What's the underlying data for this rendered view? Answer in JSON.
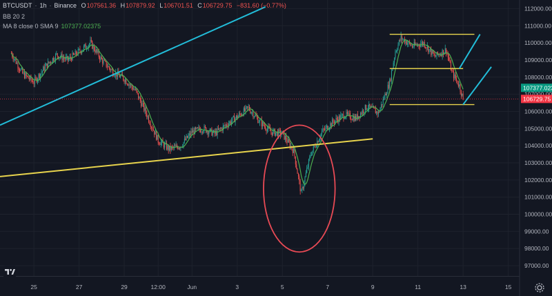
{
  "header": {
    "symbol": "BTCUSDT",
    "interval": "1h",
    "exchange": "Binance",
    "open_label": "O",
    "open": "107561.36",
    "high_label": "H",
    "high": "107879.92",
    "low_label": "L",
    "low": "106701.51",
    "close_label": "C",
    "close": "106729.75",
    "change": "−831.60 (−0.77%)",
    "bb_label": "BB 20 2",
    "ma_label": "MA 8 close 0 SMA 9",
    "ma_value": "107377.02375"
  },
  "colors": {
    "background": "#131722",
    "up": "#26a69a",
    "down": "#ef5350",
    "ma": "#4caf50",
    "trendline_cyan": "#22bcd8",
    "trendline_yellow": "#e8d44d",
    "circle": "#e84a55",
    "price_tag_current": "#f23645",
    "price_tag_ma": "#089981"
  },
  "price_tags": {
    "ma": "107377.023",
    "current": "106729.75"
  },
  "chart_data": {
    "type": "candlestick",
    "y_axis_labels": [
      "112000.00",
      "111000.00",
      "110000.00",
      "109000.00",
      "108000.00",
      "107000.00",
      "106000.00",
      "105000.00",
      "104000.00",
      "103000.00",
      "102000.00",
      "101000.00",
      "100000.00",
      "99000.00",
      "98000.00",
      "97000.00"
    ],
    "ylim": [
      96400,
      112500
    ],
    "x_axis_labels": [
      "25",
      "27",
      "29",
      "12:00",
      "Jun",
      "3",
      "5",
      "7",
      "9",
      "11",
      "13",
      "15"
    ],
    "approx_price_path": [
      {
        "t": "May 24 00:00",
        "p": 109400
      },
      {
        "t": "May 24 12:00",
        "p": 108200
      },
      {
        "t": "May 25 00:00",
        "p": 107700
      },
      {
        "t": "May 25 12:00",
        "p": 108600
      },
      {
        "t": "May 26 00:00",
        "p": 109300
      },
      {
        "t": "May 26 12:00",
        "p": 109000
      },
      {
        "t": "May 27 00:00",
        "p": 109500
      },
      {
        "t": "May 27 12:00",
        "p": 110000
      },
      {
        "t": "May 28 00:00",
        "p": 109000
      },
      {
        "t": "May 28 12:00",
        "p": 108300
      },
      {
        "t": "May 29 00:00",
        "p": 107900
      },
      {
        "t": "May 29 12:00",
        "p": 107200
      },
      {
        "t": "May 30 00:00",
        "p": 105800
      },
      {
        "t": "May 30 12:00",
        "p": 104300
      },
      {
        "t": "May 31 00:00",
        "p": 103800
      },
      {
        "t": "May 31 12:00",
        "p": 104000
      },
      {
        "t": "Jun 1 00:00",
        "p": 104800
      },
      {
        "t": "Jun 1 12:00",
        "p": 105000
      },
      {
        "t": "Jun 2 00:00",
        "p": 104700
      },
      {
        "t": "Jun 2 12:00",
        "p": 105200
      },
      {
        "t": "Jun 3 00:00",
        "p": 105700
      },
      {
        "t": "Jun 3 12:00",
        "p": 106200
      },
      {
        "t": "Jun 4 00:00",
        "p": 105400
      },
      {
        "t": "Jun 4 12:00",
        "p": 104800
      },
      {
        "t": "Jun 5 00:00",
        "p": 104700
      },
      {
        "t": "Jun 5 12:00",
        "p": 103700
      },
      {
        "t": "Jun 5 20:00",
        "p": 101200
      },
      {
        "t": "Jun 6 06:00",
        "p": 103500
      },
      {
        "t": "Jun 6 18:00",
        "p": 104800
      },
      {
        "t": "Jun 7 06:00",
        "p": 105400
      },
      {
        "t": "Jun 7 18:00",
        "p": 105800
      },
      {
        "t": "Jun 8 06:00",
        "p": 105600
      },
      {
        "t": "Jun 8 18:00",
        "p": 106300
      },
      {
        "t": "Jun 9 06:00",
        "p": 105900
      },
      {
        "t": "Jun 9 18:00",
        "p": 107700
      },
      {
        "t": "Jun 10 00:00",
        "p": 109500
      },
      {
        "t": "Jun 10 06:00",
        "p": 110300
      },
      {
        "t": "Jun 10 18:00",
        "p": 109800
      },
      {
        "t": "Jun 11 06:00",
        "p": 110000
      },
      {
        "t": "Jun 11 18:00",
        "p": 109200
      },
      {
        "t": "Jun 12 06:00",
        "p": 109600
      },
      {
        "t": "Jun 12 12:00",
        "p": 108300
      },
      {
        "t": "Jun 12 20:00",
        "p": 107500
      },
      {
        "t": "Jun 13 00:00",
        "p": 106730
      }
    ],
    "drawings": [
      {
        "kind": "trendline",
        "color": "cyan",
        "from": {
          "t": "May 23 12:00",
          "p": 105200
        },
        "to": {
          "t": "Jun 4 06:00",
          "p": 112100
        }
      },
      {
        "kind": "trendline",
        "color": "yellow",
        "from": {
          "t": "May 23 12:00",
          "p": 102200
        },
        "to": {
          "t": "Jun 9 00:00",
          "p": 104400
        }
      },
      {
        "kind": "hline",
        "color": "yellow",
        "from": {
          "t": "Jun 9 18:00",
          "p": 110500
        },
        "to": {
          "t": "Jun 13 12:00",
          "p": 110500
        }
      },
      {
        "kind": "hline",
        "color": "yellow",
        "from": {
          "t": "Jun 9 18:00",
          "p": 108500
        },
        "to": {
          "t": "Jun 13 00:00",
          "p": 108500
        }
      },
      {
        "kind": "hline",
        "color": "yellow",
        "from": {
          "t": "Jun 9 18:00",
          "p": 106400
        },
        "to": {
          "t": "Jun 13 12:00",
          "p": 106400
        }
      },
      {
        "kind": "trendline",
        "color": "cyan",
        "from": {
          "t": "Jun 12 20:00",
          "p": 108500
        },
        "to": {
          "t": "Jun 13 18:00",
          "p": 110500
        }
      },
      {
        "kind": "trendline",
        "color": "cyan",
        "from": {
          "t": "Jun 13 00:00",
          "p": 106400
        },
        "to": {
          "t": "Jun 14 06:00",
          "p": 108600
        }
      },
      {
        "kind": "ellipse",
        "color": "red",
        "center": {
          "t": "Jun 5 18:00",
          "p": 101500
        },
        "rx_hours": 38,
        "ry_price": 3700
      }
    ]
  }
}
